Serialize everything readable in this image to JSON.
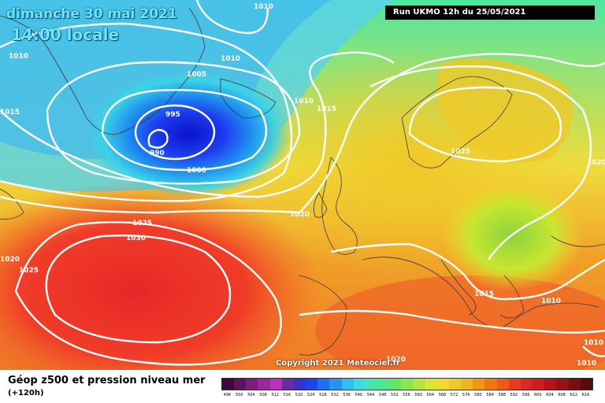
{
  "header": {
    "date": "dimanche 30 mai 2021",
    "time": "14:00 locale",
    "run": "Run UKMO 12h du 25/05/2021"
  },
  "footer": {
    "caption": "Géop z500 et pression niveau mer",
    "forecast": "(+120h)",
    "copyright": "Copyright 2021 Meteociel.fr"
  },
  "isobar_labels": [
    "1010",
    "1010",
    "1010",
    "1005",
    "995",
    "990",
    "1000",
    "1010",
    "1015",
    "1015",
    "1025",
    "1030",
    "1025",
    "1020",
    "1020",
    "1025",
    "1020",
    "1020",
    "1015",
    "1010",
    "1010",
    "1010",
    "1010"
  ],
  "scale": {
    "labels": [
      "496",
      "500",
      "504",
      "508",
      "512",
      "516",
      "520",
      "524",
      "528",
      "532",
      "536",
      "540",
      "544",
      "548",
      "552",
      "556",
      "560",
      "564",
      "568",
      "572",
      "576",
      "580",
      "584",
      "588",
      "592",
      "596",
      "600",
      "604",
      "608",
      "612",
      "616"
    ],
    "colors": [
      "#3a0a3a",
      "#5a145a",
      "#7a1e7a",
      "#9a289a",
      "#ba32ba",
      "#6a2aa0",
      "#3a32c8",
      "#1e46e6",
      "#1e6ef0",
      "#2896f0",
      "#32bef0",
      "#3cdcdc",
      "#46e6b4",
      "#50e68c",
      "#64e664",
      "#8ce650",
      "#b4e63c",
      "#dce632",
      "#f0dc28",
      "#f0c828",
      "#f0b41e",
      "#f09614",
      "#f07814",
      "#f05a14",
      "#e63c1e",
      "#dc2828",
      "#c81e1e",
      "#b41414",
      "#961414",
      "#780f0f",
      "#5a0a0a"
    ]
  }
}
